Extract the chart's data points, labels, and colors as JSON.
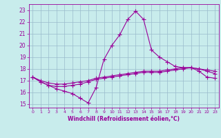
{
  "xlabel": "Windchill (Refroidissement éolien,°C)",
  "background_color": "#c8ecec",
  "line_color": "#990099",
  "grid_color": "#99bbcc",
  "ylim": [
    14.7,
    23.5
  ],
  "xlim": [
    -0.5,
    23.5
  ],
  "xticks": [
    0,
    1,
    2,
    3,
    4,
    5,
    6,
    7,
    8,
    9,
    10,
    11,
    12,
    13,
    14,
    15,
    16,
    17,
    18,
    19,
    20,
    21,
    22,
    23
  ],
  "yticks": [
    15,
    16,
    17,
    18,
    19,
    20,
    21,
    22,
    23
  ],
  "curve1": [
    17.3,
    16.9,
    16.6,
    16.3,
    16.1,
    15.9,
    15.5,
    15.1,
    16.4,
    18.8,
    20.0,
    20.9,
    22.2,
    22.9,
    22.2,
    19.6,
    19.0,
    18.6,
    18.2,
    18.1,
    18.1,
    17.8,
    17.3,
    17.2
  ],
  "curve2": [
    17.3,
    16.9,
    16.6,
    16.5,
    16.5,
    16.6,
    16.7,
    16.9,
    17.1,
    17.2,
    17.3,
    17.4,
    17.5,
    17.6,
    17.7,
    17.7,
    17.7,
    17.8,
    17.9,
    18.0,
    18.1,
    18.0,
    17.9,
    17.8
  ],
  "curve3": [
    17.3,
    17.0,
    16.8,
    16.7,
    16.7,
    16.8,
    16.9,
    17.0,
    17.2,
    17.3,
    17.4,
    17.5,
    17.6,
    17.7,
    17.8,
    17.8,
    17.8,
    17.9,
    18.0,
    18.1,
    18.1,
    18.0,
    17.8,
    17.6
  ]
}
